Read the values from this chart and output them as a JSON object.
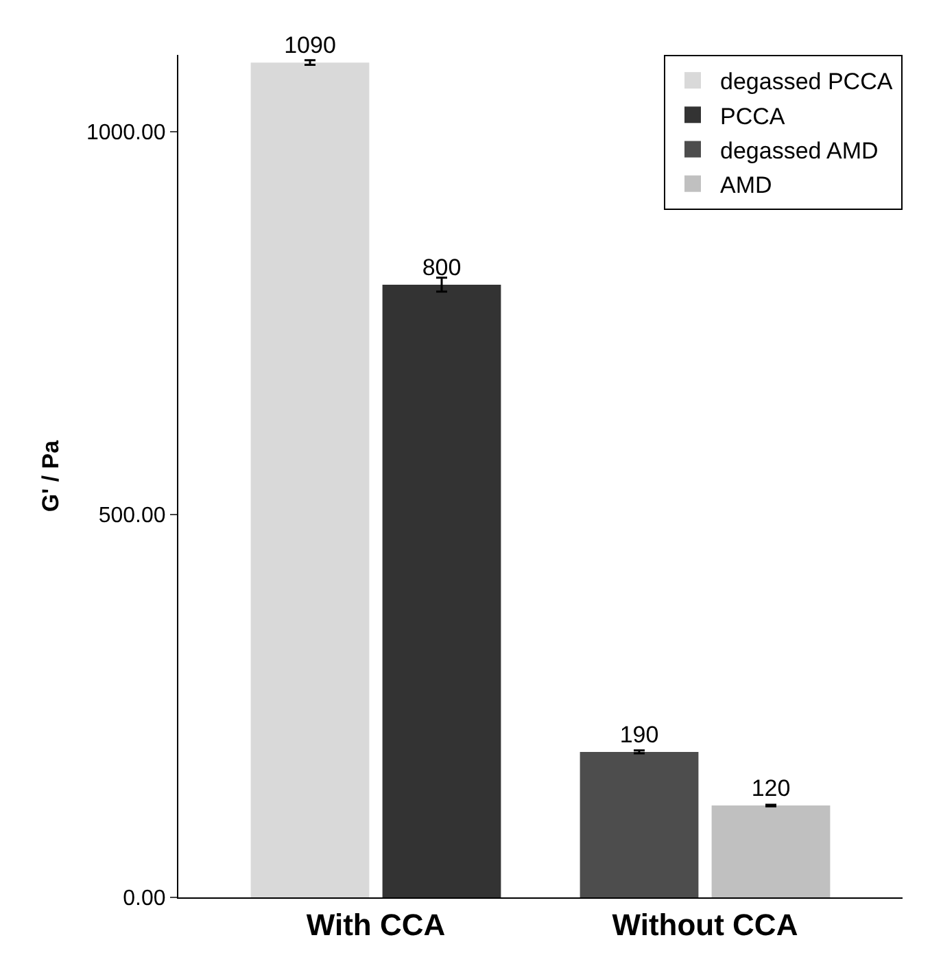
{
  "chart_data": {
    "type": "bar",
    "ylabel": "G' / Pa",
    "categories": [
      "With CCA",
      "Without CCA"
    ],
    "series": [
      {
        "name": "degassed PCCA",
        "color": "#d9d9d9",
        "values": [
          1090,
          null
        ],
        "errors": [
          3,
          null
        ]
      },
      {
        "name": "PCCA",
        "color": "#333333",
        "values": [
          800,
          null
        ],
        "errors": [
          9,
          null
        ]
      },
      {
        "name": "degassed AMD",
        "color": "#4d4d4d",
        "values": [
          null,
          190
        ],
        "errors": [
          null,
          2
        ]
      },
      {
        "name": "AMD",
        "color": "#c0c0c0",
        "values": [
          null,
          120
        ],
        "errors": [
          null,
          1
        ]
      }
    ],
    "ylim": [
      0,
      1100
    ],
    "yticks": [
      {
        "value": 0,
        "label": "0.00"
      },
      {
        "value": 500,
        "label": "500.00"
      },
      {
        "value": 1000,
        "label": "1000.00"
      }
    ],
    "data_labels": true,
    "legend": "top right"
  }
}
